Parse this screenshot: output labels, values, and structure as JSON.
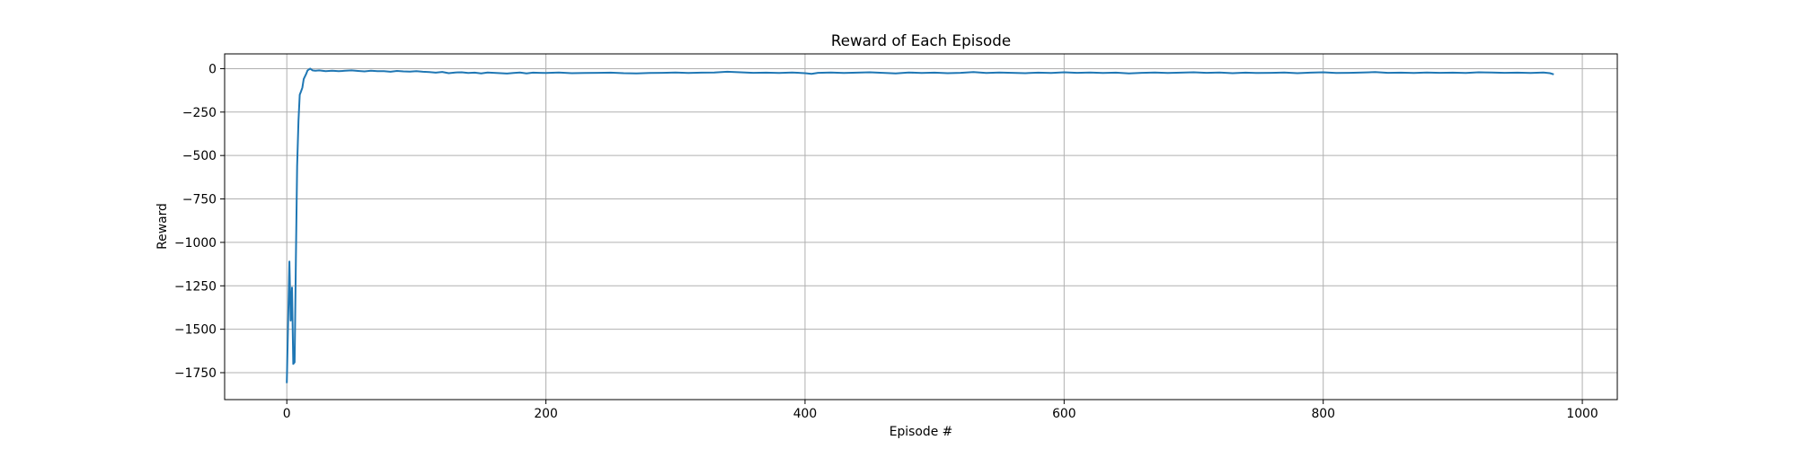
{
  "chart_data": {
    "type": "line",
    "title": "Reward of Each Episode",
    "xlabel": "Episode #",
    "ylabel": "Reward",
    "xlim": [
      -48,
      1027
    ],
    "ylim": [
      -1905,
      85
    ],
    "x_ticks": [
      0,
      200,
      400,
      600,
      800,
      1000
    ],
    "y_ticks": [
      0,
      -250,
      -500,
      -750,
      -1000,
      -1250,
      -1500,
      -1750
    ],
    "x_tick_labels": [
      "0",
      "200",
      "400",
      "600",
      "800",
      "1000"
    ],
    "y_tick_labels": [
      "0",
      "−250",
      "−500",
      "−750",
      "−1000",
      "−1250",
      "−1500",
      "−1750"
    ],
    "grid": true,
    "colors": {
      "line": "#1f77b4",
      "grid": "#b0b0b0",
      "axes": "#000000"
    },
    "series": [
      {
        "x": [
          0,
          2,
          3,
          4,
          5,
          6,
          7,
          8,
          9,
          10,
          11,
          12,
          13,
          15,
          16,
          18,
          20,
          22,
          25,
          30,
          35,
          40,
          45,
          50,
          55,
          60,
          65,
          70,
          75,
          80,
          85,
          90,
          95,
          100,
          105,
          110,
          115,
          120,
          125,
          130,
          135,
          140,
          145,
          150,
          155,
          160,
          165,
          170,
          175,
          180,
          185,
          190,
          195,
          200,
          210,
          220,
          230,
          240,
          250,
          260,
          270,
          280,
          290,
          300,
          310,
          320,
          330,
          340,
          350,
          360,
          370,
          380,
          390,
          400,
          405,
          410,
          420,
          430,
          440,
          450,
          460,
          470,
          480,
          490,
          500,
          510,
          520,
          530,
          540,
          550,
          560,
          570,
          580,
          590,
          600,
          610,
          620,
          630,
          640,
          650,
          660,
          670,
          680,
          690,
          700,
          710,
          720,
          730,
          740,
          750,
          760,
          770,
          780,
          790,
          800,
          810,
          820,
          830,
          840,
          850,
          860,
          870,
          880,
          890,
          900,
          910,
          920,
          930,
          940,
          950,
          960,
          970,
          975,
          978
        ],
        "y": [
          -1810,
          -1110,
          -1450,
          -1260,
          -1700,
          -1690,
          -1100,
          -560,
          -300,
          -150,
          -130,
          -110,
          -60,
          -30,
          -10,
          0,
          -10,
          -12,
          -10,
          -14,
          -12,
          -15,
          -12,
          -10,
          -13,
          -16,
          -12,
          -14,
          -15,
          -18,
          -13,
          -16,
          -17,
          -14,
          -18,
          -20,
          -23,
          -19,
          -26,
          -22,
          -21,
          -25,
          -23,
          -27,
          -22,
          -24,
          -26,
          -28,
          -25,
          -22,
          -27,
          -23,
          -24,
          -25,
          -22,
          -26,
          -25,
          -24,
          -23,
          -26,
          -27,
          -25,
          -24,
          -22,
          -25,
          -23,
          -22,
          -18,
          -21,
          -24,
          -23,
          -25,
          -22,
          -26,
          -30,
          -24,
          -22,
          -25,
          -23,
          -21,
          -24,
          -27,
          -22,
          -25,
          -23,
          -26,
          -24,
          -20,
          -25,
          -22,
          -24,
          -26,
          -23,
          -25,
          -21,
          -24,
          -22,
          -25,
          -23,
          -27,
          -24,
          -22,
          -25,
          -23,
          -21,
          -24,
          -22,
          -26,
          -23,
          -25,
          -24,
          -22,
          -26,
          -23,
          -21,
          -25,
          -24,
          -22,
          -20,
          -24,
          -23,
          -25,
          -22,
          -24,
          -23,
          -25,
          -21,
          -22,
          -24,
          -23,
          -25,
          -22,
          -26,
          -33
        ]
      }
    ]
  }
}
